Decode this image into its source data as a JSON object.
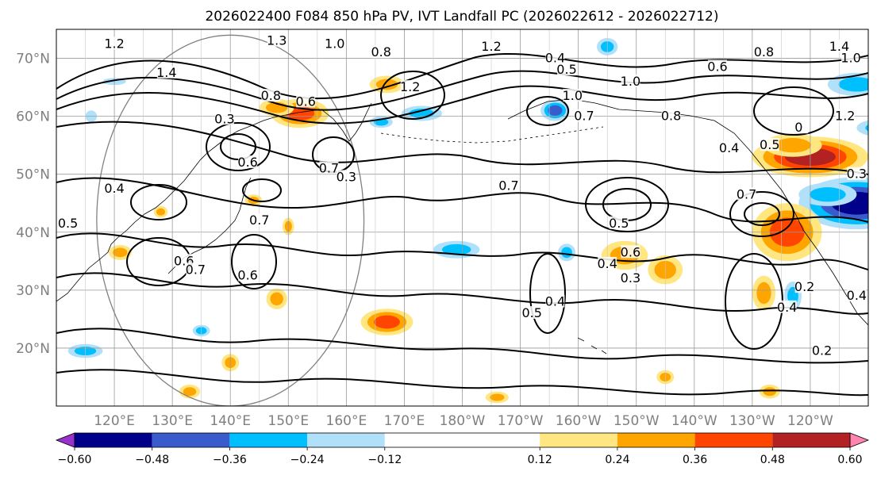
{
  "chart_data": {
    "type": "heatmap",
    "title": "2026022400 F084 850 hPa PV, IVT Landfall PC (2026022612 - 2026022712)",
    "projection": "PlateCarree",
    "lon_range": [
      110,
      250
    ],
    "lat_range": [
      10,
      75
    ],
    "x_ticks": [
      {
        "lon": 120,
        "label": "120°E"
      },
      {
        "lon": 130,
        "label": "130°E"
      },
      {
        "lon": 140,
        "label": "140°E"
      },
      {
        "lon": 150,
        "label": "150°E"
      },
      {
        "lon": 160,
        "label": "160°E"
      },
      {
        "lon": 170,
        "label": "170°E"
      },
      {
        "lon": 180,
        "label": "180°W"
      },
      {
        "lon": 190,
        "label": "170°W"
      },
      {
        "lon": 200,
        "label": "160°W"
      },
      {
        "lon": 210,
        "label": "150°W"
      },
      {
        "lon": 220,
        "label": "140°W"
      },
      {
        "lon": 230,
        "label": "130°W"
      },
      {
        "lon": 240,
        "label": "120°W"
      }
    ],
    "y_ticks": [
      {
        "lat": 20,
        "label": "20°N"
      },
      {
        "lat": 30,
        "label": "30°N"
      },
      {
        "lat": 40,
        "label": "40°N"
      },
      {
        "lat": 50,
        "label": "50°N"
      },
      {
        "lat": 60,
        "label": "60°N"
      },
      {
        "lat": 70,
        "label": "70°N"
      }
    ],
    "colorbar": {
      "extend": "both",
      "levels": [
        -0.72,
        -0.6,
        -0.48,
        -0.36,
        -0.24,
        -0.12,
        0.12,
        0.24,
        0.36,
        0.48,
        0.6,
        0.72
      ],
      "colors": [
        "#9932CC",
        "#00008B",
        "#3A5BCC",
        "#00BFFF",
        "#B0E0FA",
        "#FFFFFF",
        "#FFE680",
        "#FFA500",
        "#FF4500",
        "#B22222",
        "#FF85B0"
      ],
      "tick_labels": [
        "−0.60",
        "−0.48",
        "−0.36",
        "−0.24",
        "−0.12",
        "0.12",
        "0.24",
        "0.36",
        "0.48",
        "0.60"
      ],
      "tick_values": [
        -0.6,
        -0.48,
        -0.36,
        -0.24,
        -0.12,
        0.12,
        0.24,
        0.36,
        0.48,
        0.6
      ]
    },
    "contour_labels": [
      {
        "lon": 120,
        "lat": 72.5,
        "text": "1.2"
      },
      {
        "lon": 148,
        "lat": 73,
        "text": "1.3"
      },
      {
        "lon": 158,
        "lat": 72.5,
        "text": "1.0"
      },
      {
        "lon": 166,
        "lat": 71,
        "text": "0.8"
      },
      {
        "lon": 185,
        "lat": 72,
        "text": "1.2"
      },
      {
        "lon": 129,
        "lat": 67.5,
        "text": "1.4"
      },
      {
        "lon": 147,
        "lat": 63.5,
        "text": "0.8"
      },
      {
        "lon": 153,
        "lat": 62.5,
        "text": "0.6"
      },
      {
        "lon": 171,
        "lat": 65,
        "text": "1.2"
      },
      {
        "lon": 139,
        "lat": 59.5,
        "text": "0.3"
      },
      {
        "lon": 143,
        "lat": 52,
        "text": "0.6"
      },
      {
        "lon": 120,
        "lat": 47.5,
        "text": "0.4"
      },
      {
        "lon": 112,
        "lat": 41.5,
        "text": "0.5"
      },
      {
        "lon": 157,
        "lat": 51,
        "text": "0.7"
      },
      {
        "lon": 160,
        "lat": 49.5,
        "text": "0.3"
      },
      {
        "lon": 145,
        "lat": 42,
        "text": "0.7"
      },
      {
        "lon": 132,
        "lat": 35,
        "text": "0.6"
      },
      {
        "lon": 134,
        "lat": 33.5,
        "text": "0.7"
      },
      {
        "lon": 143,
        "lat": 32.5,
        "text": "0.6"
      },
      {
        "lon": 196,
        "lat": 70,
        "text": "0.4"
      },
      {
        "lon": 198,
        "lat": 68,
        "text": "0.5"
      },
      {
        "lon": 209,
        "lat": 66,
        "text": "1.0"
      },
      {
        "lon": 199,
        "lat": 63.5,
        "text": "1.0"
      },
      {
        "lon": 201,
        "lat": 60,
        "text": "0.7"
      },
      {
        "lon": 216,
        "lat": 60,
        "text": "0.8"
      },
      {
        "lon": 224,
        "lat": 68.5,
        "text": "0.6"
      },
      {
        "lon": 232,
        "lat": 71,
        "text": "0.8"
      },
      {
        "lon": 245,
        "lat": 72,
        "text": "1.4"
      },
      {
        "lon": 247,
        "lat": 70,
        "text": "1.0"
      },
      {
        "lon": 246,
        "lat": 60,
        "text": "1.2"
      },
      {
        "lon": 238,
        "lat": 58,
        "text": "0"
      },
      {
        "lon": 226,
        "lat": 54.5,
        "text": "0.4"
      },
      {
        "lon": 233,
        "lat": 55,
        "text": "0.5"
      },
      {
        "lon": 248,
        "lat": 50,
        "text": "0.3"
      },
      {
        "lon": 229,
        "lat": 46.5,
        "text": "0.7"
      },
      {
        "lon": 188,
        "lat": 48,
        "text": "0.7"
      },
      {
        "lon": 207,
        "lat": 41.5,
        "text": "0.5"
      },
      {
        "lon": 205,
        "lat": 34.5,
        "text": "0.4"
      },
      {
        "lon": 209,
        "lat": 36.5,
        "text": "0.6"
      },
      {
        "lon": 209,
        "lat": 32,
        "text": "0.3"
      },
      {
        "lon": 196,
        "lat": 28,
        "text": "0.4"
      },
      {
        "lon": 192,
        "lat": 26,
        "text": "0.5"
      },
      {
        "lon": 239,
        "lat": 30.5,
        "text": "0.2"
      },
      {
        "lon": 236,
        "lat": 27,
        "text": "0.4"
      },
      {
        "lon": 248,
        "lat": 29,
        "text": "0.4"
      },
      {
        "lon": 242,
        "lat": 19.5,
        "text": "0.2"
      }
    ],
    "shaded_anomalies": [
      {
        "lon": 152,
        "lat": 60.5,
        "rx": 5,
        "ry": 2.5,
        "value": 0.5
      },
      {
        "lon": 148,
        "lat": 61.5,
        "rx": 3,
        "ry": 1.5,
        "value": 0.3
      },
      {
        "lon": 167,
        "lat": 65.5,
        "rx": 3,
        "ry": 1.5,
        "value": 0.3
      },
      {
        "lon": 173,
        "lat": 60.5,
        "rx": 3.5,
        "ry": 1.3,
        "value": -0.35
      },
      {
        "lon": 166,
        "lat": 59,
        "rx": 2,
        "ry": 1,
        "value": -0.3
      },
      {
        "lon": 196,
        "lat": 61,
        "rx": 2.5,
        "ry": 1.8,
        "value": -0.45
      },
      {
        "lon": 205,
        "lat": 72,
        "rx": 1.8,
        "ry": 1.5,
        "value": -0.35
      },
      {
        "lon": 248,
        "lat": 65.5,
        "rx": 5,
        "ry": 2,
        "value": -0.4
      },
      {
        "lon": 252,
        "lat": 58,
        "rx": 4,
        "ry": 1.5,
        "value": -0.3
      },
      {
        "lon": 240,
        "lat": 53,
        "rx": 10,
        "ry": 3.5,
        "value": 0.6
      },
      {
        "lon": 237,
        "lat": 55,
        "rx": 5,
        "ry": 2,
        "value": 0.4
      },
      {
        "lon": 248,
        "lat": 45,
        "rx": 10,
        "ry": 4.5,
        "value": -0.62
      },
      {
        "lon": 243,
        "lat": 46.5,
        "rx": 5,
        "ry": 2,
        "value": -0.4
      },
      {
        "lon": 236,
        "lat": 40,
        "rx": 6,
        "ry": 5,
        "value": 0.5
      },
      {
        "lon": 208,
        "lat": 36,
        "rx": 4,
        "ry": 2.5,
        "value": 0.4
      },
      {
        "lon": 215,
        "lat": 33.5,
        "rx": 3,
        "ry": 2.5,
        "value": 0.4
      },
      {
        "lon": 179,
        "lat": 37,
        "rx": 4,
        "ry": 1.5,
        "value": -0.35
      },
      {
        "lon": 198,
        "lat": 36.5,
        "rx": 1.5,
        "ry": 1.5,
        "value": -0.3
      },
      {
        "lon": 167,
        "lat": 24.5,
        "rx": 4.5,
        "ry": 2.3,
        "value": 0.45
      },
      {
        "lon": 148,
        "lat": 28.5,
        "rx": 1.8,
        "ry": 1.8,
        "value": 0.35
      },
      {
        "lon": 232,
        "lat": 29.5,
        "rx": 2,
        "ry": 3,
        "value": 0.4
      },
      {
        "lon": 237,
        "lat": 29,
        "rx": 1.5,
        "ry": 2.5,
        "value": -0.3
      },
      {
        "lon": 121,
        "lat": 36.5,
        "rx": 2,
        "ry": 1.3,
        "value": 0.3
      },
      {
        "lon": 115,
        "lat": 19.5,
        "rx": 3,
        "ry": 1.2,
        "value": -0.35
      },
      {
        "lon": 140,
        "lat": 17.5,
        "rx": 1.5,
        "ry": 1.5,
        "value": 0.3
      },
      {
        "lon": 133,
        "lat": 12.5,
        "rx": 1.8,
        "ry": 1.2,
        "value": 0.3
      },
      {
        "lon": 233,
        "lat": 12.5,
        "rx": 1.8,
        "ry": 1.2,
        "value": 0.4
      },
      {
        "lon": 215,
        "lat": 15,
        "rx": 1.5,
        "ry": 1.2,
        "value": 0.3
      },
      {
        "lon": 186,
        "lat": 11.5,
        "rx": 2,
        "ry": 1,
        "value": 0.3
      },
      {
        "lon": 150,
        "lat": 41,
        "rx": 1,
        "ry": 1.5,
        "value": 0.3
      },
      {
        "lon": 144,
        "lat": 45.5,
        "rx": 1.5,
        "ry": 1,
        "value": 0.3
      },
      {
        "lon": 128,
        "lat": 43.5,
        "rx": 1.2,
        "ry": 1,
        "value": 0.3
      },
      {
        "lon": 116,
        "lat": 60,
        "rx": 1,
        "ry": 1,
        "value": -0.25
      },
      {
        "lon": 120,
        "lat": 66,
        "rx": 2,
        "ry": 0.6,
        "value": -0.25
      },
      {
        "lon": 135,
        "lat": 23,
        "rx": 1.5,
        "ry": 1,
        "value": -0.3
      }
    ],
    "great_circle": {
      "center_lon": 140,
      "center_lat": 42,
      "radius_deg": 32
    }
  }
}
